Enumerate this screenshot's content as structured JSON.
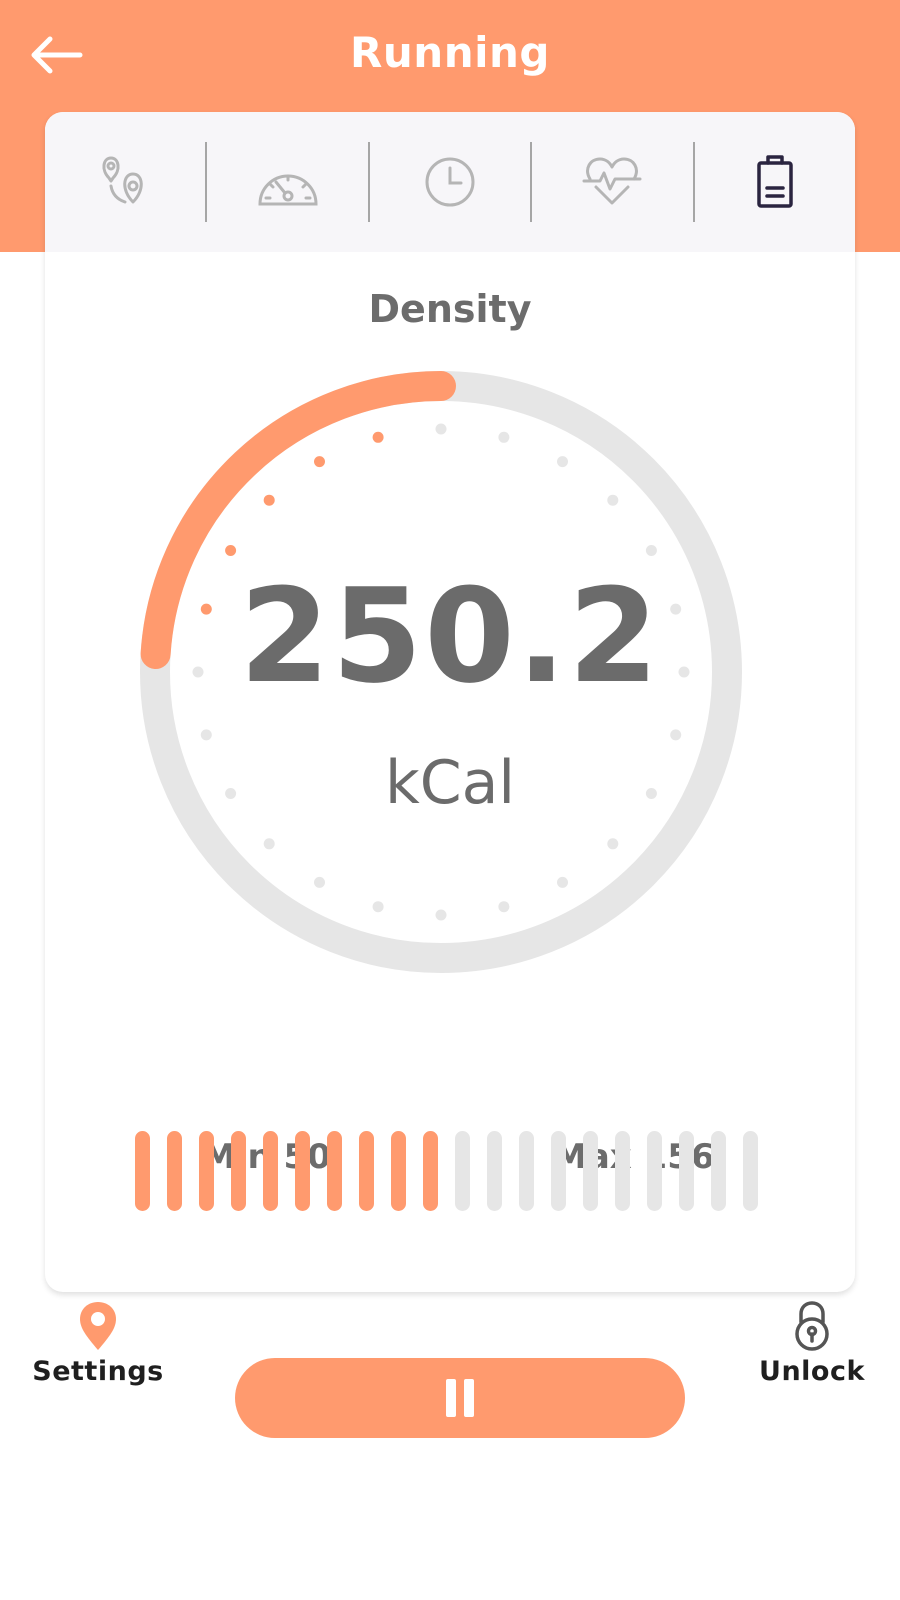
{
  "header": {
    "title": "Running",
    "back_icon": "arrow-left-icon"
  },
  "tabs": [
    {
      "icon": "route-pins-icon",
      "active": false
    },
    {
      "icon": "speedometer-icon",
      "active": false
    },
    {
      "icon": "clock-icon",
      "active": false
    },
    {
      "icon": "heart-pulse-icon",
      "active": false
    },
    {
      "icon": "battery-icon",
      "active": true
    }
  ],
  "gauge": {
    "title": "Density",
    "value": "250.2",
    "unit": "kCal",
    "progress_fraction": 0.24
  },
  "range": {
    "min_label": "Min 50",
    "max_label": "Max 156",
    "total_bars": 20,
    "filled_bars": 10
  },
  "bottom_nav": {
    "settings_label": "Settings",
    "unlock_label": "Unlock",
    "pause_icon": "pause-icon"
  },
  "colors": {
    "accent": "#ff9a6e",
    "track": "#e6e6e6",
    "text_gray": "#6b6b6b",
    "text_dark": "#1f1f1f",
    "active_icon": "#2a2440",
    "inactive_icon": "#b5b5b5"
  }
}
